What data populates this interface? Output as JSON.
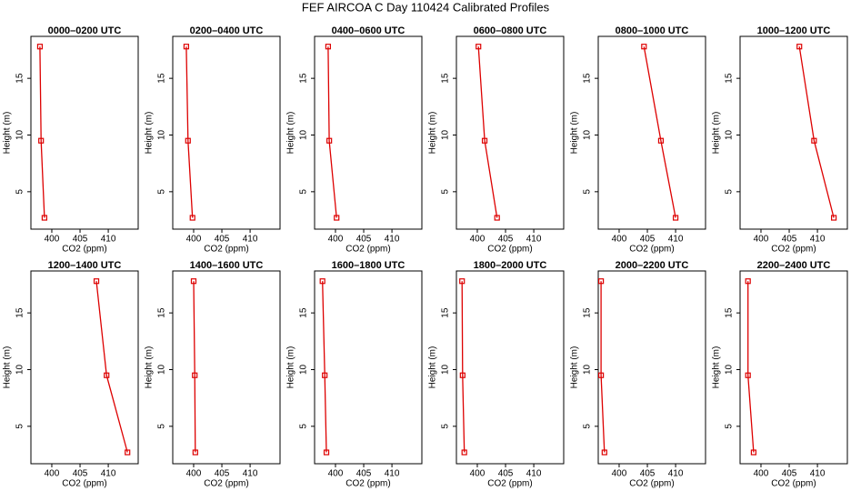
{
  "title": "FEF AIRCOA C  Day 110424  Calibrated Profiles",
  "chart_data": [
    {
      "type": "line",
      "title": "0000–0200 UTC",
      "xlabel": "CO2 (ppm)",
      "ylabel": "Height (m)",
      "xlim": [
        396.3,
        415.3
      ],
      "ylim": [
        1.7,
        18.7
      ],
      "xticks": [
        400,
        405,
        410
      ],
      "yticks": [
        5,
        10,
        15
      ],
      "series": [
        {
          "color": "#dd0000",
          "x": [
            397.9,
            398.1,
            398.7
          ],
          "values": [
            17.8,
            9.5,
            2.7
          ]
        }
      ]
    },
    {
      "type": "line",
      "title": "0200–0400 UTC",
      "xlabel": "CO2 (ppm)",
      "ylabel": "Height (m)",
      "xlim": [
        396.3,
        415.3
      ],
      "ylim": [
        1.7,
        18.7
      ],
      "xticks": [
        400,
        405,
        410
      ],
      "yticks": [
        5,
        10,
        15
      ],
      "series": [
        {
          "color": "#dd0000",
          "x": [
            398.7,
            399.0,
            399.8
          ],
          "values": [
            17.8,
            9.5,
            2.7
          ]
        }
      ]
    },
    {
      "type": "line",
      "title": "0400–0600 UTC",
      "xlabel": "CO2 (ppm)",
      "ylabel": "Height (m)",
      "xlim": [
        396.3,
        415.3
      ],
      "ylim": [
        1.7,
        18.7
      ],
      "xticks": [
        400,
        405,
        410
      ],
      "yticks": [
        5,
        10,
        15
      ],
      "series": [
        {
          "color": "#dd0000",
          "x": [
            398.7,
            398.9,
            400.2
          ],
          "values": [
            17.8,
            9.5,
            2.7
          ]
        }
      ]
    },
    {
      "type": "line",
      "title": "0600–0800 UTC",
      "xlabel": "CO2 (ppm)",
      "ylabel": "Height (m)",
      "xlim": [
        396.3,
        415.3
      ],
      "ylim": [
        1.7,
        18.7
      ],
      "xticks": [
        400,
        405,
        410
      ],
      "yticks": [
        5,
        10,
        15
      ],
      "series": [
        {
          "color": "#dd0000",
          "x": [
            400.2,
            401.3,
            403.5
          ],
          "values": [
            17.8,
            9.5,
            2.7
          ]
        }
      ]
    },
    {
      "type": "line",
      "title": "0800–1000 UTC",
      "xlabel": "CO2 (ppm)",
      "ylabel": "Height (m)",
      "xlim": [
        396.3,
        415.3
      ],
      "ylim": [
        1.7,
        18.7
      ],
      "xticks": [
        400,
        405,
        410
      ],
      "yticks": [
        5,
        10,
        15
      ],
      "series": [
        {
          "color": "#dd0000",
          "x": [
            404.4,
            407.4,
            410.0
          ],
          "values": [
            17.8,
            9.5,
            2.7
          ]
        }
      ]
    },
    {
      "type": "line",
      "title": "1000–1200 UTC",
      "xlabel": "CO2 (ppm)",
      "ylabel": "Height (m)",
      "xlim": [
        396.3,
        415.3
      ],
      "ylim": [
        1.7,
        18.7
      ],
      "xticks": [
        400,
        405,
        410
      ],
      "yticks": [
        5,
        10,
        15
      ],
      "series": [
        {
          "color": "#dd0000",
          "x": [
            406.8,
            409.4,
            412.9
          ],
          "values": [
            17.8,
            9.5,
            2.7
          ]
        }
      ]
    },
    {
      "type": "line",
      "title": "1200–1400 UTC",
      "xlabel": "CO2 (ppm)",
      "ylabel": "Height (m)",
      "xlim": [
        396.3,
        415.3
      ],
      "ylim": [
        1.7,
        18.7
      ],
      "xticks": [
        400,
        405,
        410
      ],
      "yticks": [
        5,
        10,
        15
      ],
      "series": [
        {
          "color": "#dd0000",
          "x": [
            407.9,
            409.7,
            413.4
          ],
          "values": [
            17.8,
            9.5,
            2.7
          ]
        }
      ]
    },
    {
      "type": "line",
      "title": "1400–1600 UTC",
      "xlabel": "CO2 (ppm)",
      "ylabel": "Height (m)",
      "xlim": [
        396.3,
        415.3
      ],
      "ylim": [
        1.7,
        18.7
      ],
      "xticks": [
        400,
        405,
        410
      ],
      "yticks": [
        5,
        10,
        15
      ],
      "series": [
        {
          "color": "#dd0000",
          "x": [
            400.0,
            400.2,
            400.3
          ],
          "values": [
            17.8,
            9.5,
            2.7
          ]
        }
      ]
    },
    {
      "type": "line",
      "title": "1600–1800 UTC",
      "xlabel": "CO2 (ppm)",
      "ylabel": "Height (m)",
      "xlim": [
        396.3,
        415.3
      ],
      "ylim": [
        1.7,
        18.7
      ],
      "xticks": [
        400,
        405,
        410
      ],
      "yticks": [
        5,
        10,
        15
      ],
      "series": [
        {
          "color": "#dd0000",
          "x": [
            397.7,
            398.1,
            398.4
          ],
          "values": [
            17.8,
            9.5,
            2.7
          ]
        }
      ]
    },
    {
      "type": "line",
      "title": "1800–2000 UTC",
      "xlabel": "CO2 (ppm)",
      "ylabel": "Height (m)",
      "xlim": [
        396.3,
        415.3
      ],
      "ylim": [
        1.7,
        18.7
      ],
      "xticks": [
        400,
        405,
        410
      ],
      "yticks": [
        5,
        10,
        15
      ],
      "series": [
        {
          "color": "#dd0000",
          "x": [
            397.3,
            397.4,
            397.7
          ],
          "values": [
            17.8,
            9.5,
            2.7
          ]
        }
      ]
    },
    {
      "type": "line",
      "title": "2000–2200 UTC",
      "xlabel": "CO2 (ppm)",
      "ylabel": "Height (m)",
      "xlim": [
        396.3,
        415.3
      ],
      "ylim": [
        1.7,
        18.7
      ],
      "xticks": [
        400,
        405,
        410
      ],
      "yticks": [
        5,
        10,
        15
      ],
      "series": [
        {
          "color": "#dd0000",
          "x": [
            396.8,
            396.8,
            397.4
          ],
          "values": [
            17.8,
            9.5,
            2.7
          ]
        }
      ]
    },
    {
      "type": "line",
      "title": "2200–2400 UTC",
      "xlabel": "CO2 (ppm)",
      "ylabel": "Height (m)",
      "xlim": [
        396.3,
        415.3
      ],
      "ylim": [
        1.7,
        18.7
      ],
      "xticks": [
        400,
        405,
        410
      ],
      "yticks": [
        5,
        10,
        15
      ],
      "series": [
        {
          "color": "#dd0000",
          "x": [
            397.7,
            397.7,
            398.7
          ],
          "values": [
            17.8,
            9.5,
            2.7
          ]
        }
      ]
    }
  ]
}
